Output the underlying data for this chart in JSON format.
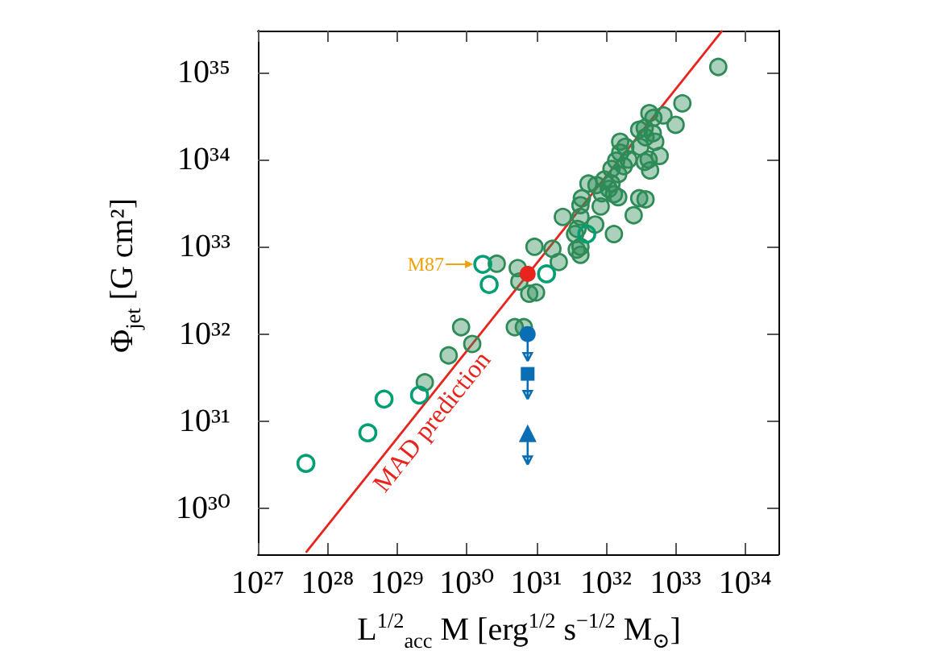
{
  "chart_data": {
    "type": "scatter",
    "xlabel": "L$^{1/2}$$_{acc}$ M [erg$^{1/2}$ s$^{−1/2}$ M$_{⊙}$]",
    "ylabel": "Φ$_{jet}$ [G cm²]",
    "log": "xy",
    "xlim": [
      1e+27,
      3e+34
    ],
    "ylim": [
      3e+29,
      3e+35
    ],
    "xticks": [
      {
        "value": 1e+27,
        "label": "10²⁷"
      },
      {
        "value": 1e+28,
        "label": "10²⁸"
      },
      {
        "value": 1e+29,
        "label": "10²⁹"
      },
      {
        "value": 1e+30,
        "label": "10³⁰"
      },
      {
        "value": 1e+31,
        "label": "10³¹"
      },
      {
        "value": 1e+32,
        "label": "10³²"
      },
      {
        "value": 1e+33,
        "label": "10³³"
      },
      {
        "value": 1e+34,
        "label": "10³⁴"
      }
    ],
    "yticks": [
      {
        "value": 1e+30,
        "label": "10³⁰"
      },
      {
        "value": 1e+31,
        "label": "10³¹"
      },
      {
        "value": 1e+32,
        "label": "10³²"
      },
      {
        "value": 1e+33,
        "label": "10³³"
      },
      {
        "value": 1e+34,
        "label": "10³⁴"
      },
      {
        "value": 1e+35,
        "label": "10³⁵"
      }
    ],
    "series": [
      {
        "color": "#2e8b57",
        "marker": "circle",
        "x": [
          4.1e+33,
          1.25e+33,
          4.2e+32,
          6.7e+32,
          4.8e+32,
          1e+33,
          3e+32,
          3.6e+32,
          4.7e+32,
          3.7e+32,
          5.1e+32,
          3.1e+32,
          1.6e+32,
          1.9e+32,
          1.6e+32,
          1.4e+32,
          2.1e+32,
          1.8e+32,
          4.1e+32,
          5.9e+32,
          3.6e+32,
          4.3e+32,
          1.2e+32,
          1.5e+32,
          9.5e+31,
          1.2e+32,
          5.6e+31,
          7.3e+31,
          1.1e+32,
          1.3e+32,
          8.7e+31,
          1.5e+32,
          3e+32,
          3.7e+32,
          4.5e+31,
          4.3e+31,
          8.4e+31,
          2.5e+32,
          2.4e+31,
          4.3e+31,
          7e+31,
          3.9e+31,
          1.3e+32,
          3.6e+31,
          4.3e+31,
          3.8e+31,
          4.3e+31,
          2.1e+31,
          1.7e+31,
          9.4e+30,
          2.7e+30,
          5.4e+30,
          5.7e+30,
          7.9e+30,
          9.9e+30,
          8.3e+29,
          1.2e+30,
          4.9e+30,
          6.6e+30,
          5.5e+29,
          2.5e+29
        ],
        "values": [
          1.15e+35,
          4.4e+34,
          3.4e+34,
          3.2e+34,
          3e+34,
          2.5e+34,
          2.2e+34,
          2.3e+34,
          2e+34,
          1.8e+34,
          1.6e+34,
          1.4e+34,
          1.6e+34,
          1.4e+34,
          1.2e+34,
          9.7e+33,
          1e+34,
          8.4e+33,
          1e+34,
          1.1e+34,
          9.4e+33,
          7.5e+33,
          7.8e+33,
          6.8e+33,
          5.9e+33,
          5.3e+33,
          5.3e+33,
          5.1e+33,
          4.6e+33,
          4e+33,
          4.1e+33,
          3.7e+33,
          3.6e+33,
          3.5e+33,
          3.6e+33,
          3e+33,
          2.9e+33,
          2.3e+33,
          2.2e+33,
          2.2e+33,
          1.8e+33,
          1.6e+33,
          1.4e+33,
          1.4e+33,
          1e+33,
          9.3e+32,
          8.1e+32,
          6.7e+32,
          9.5e+32,
          1e+33,
          6.4e+32,
          5.7e+32,
          4e+32,
          2.9e+32,
          3e+32,
          1.2e+32,
          7.7e+31,
          1.2e+32,
          1.2e+32,
          5.7e+31,
          2.8e+31
        ]
      },
      {
        "color": "#009e73",
        "marker": "circle",
        "x": [
          4.9e+27,
          3.8e+28,
          6.5e+28,
          2.1e+29,
          1.7e+30,
          2.1e+30,
          1.4e+31,
          5.3e+31
        ],
        "values": [
          3.3e+30,
          7.4e+30,
          1.8e+31,
          2e+31,
          6.3e+32,
          3.7e+32,
          4.9e+32,
          1.4e+33
        ]
      },
      {
        "color": "#e8241c",
        "marker": "circle",
        "x": [
          7.5e+30
        ],
        "values": [
          4.9e+32
        ]
      },
      {
        "color": "#0a6eb4",
        "marker": "circle",
        "x": [
          7.5e+30
        ],
        "values": [
          1e+32
        ],
        "errors": [
          [
            4.9e+31,
            1e+32
          ]
        ]
      },
      {
        "color": "#0a6eb4",
        "marker": "square",
        "x": [
          7.5e+30
        ],
        "values": [
          3.5e+31
        ],
        "errors": [
          [
            1.8e+31,
            3.5e+31
          ]
        ]
      },
      {
        "color": "#0a6eb4",
        "marker": "triangle",
        "x": [
          7.5e+30
        ],
        "values": [
          7.3e+30
        ],
        "errors": [
          [
            3.2e+30,
            7.3e+30
          ]
        ]
      },
      {
        "type": "line",
        "name": "MAD prediction",
        "color": "#e8241c",
        "marker": "none",
        "line_style": "solid",
        "x": [
          5e+27,
          4.6e+33
        ],
        "values": [
          3.2e+29,
          2.95e+35
        ]
      }
    ],
    "annotations": [
      {
        "text": "M87",
        "x": 1.7e+30,
        "y": 6.3e+32
      }
    ]
  }
}
